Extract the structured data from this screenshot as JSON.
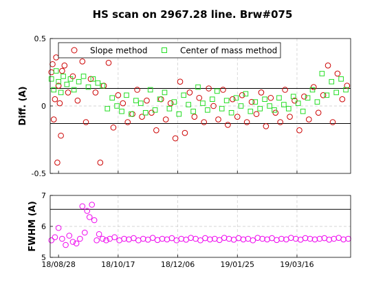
{
  "colors": {
    "slope": "#cc0000",
    "center": "#22dd22",
    "fwhm": "#ee00ee",
    "grid": "#c8c8c8"
  },
  "chart_data": [
    {
      "type": "scatter",
      "title": "HS scan on 2967.28 line. Brw#075",
      "ylabel": "Diff.  (A)",
      "xlabel": "",
      "xlim": [
        "2018-08-21",
        "2019-04-30"
      ],
      "ylim": [
        -0.5,
        0.5
      ],
      "yticks": [
        -0.5,
        0,
        0.5
      ],
      "xtick_labels": [
        "18/08/28",
        "18/10/17",
        "18/12/06",
        "19/01/25",
        "19/03/16"
      ],
      "xtick_dates": [
        "2018-08-28",
        "2018-10-17",
        "2018-12-06",
        "2019-01-25",
        "2019-03-16"
      ],
      "grid": true,
      "hlines": [
        0.13,
        -0.13
      ],
      "legend": {
        "placement": "top",
        "entries": [
          "Slope method",
          "Center of mass method"
        ]
      },
      "series": [
        {
          "name": "Slope method",
          "marker": "circle",
          "x": [
            "2018-08-22",
            "2018-08-23",
            "2018-08-24",
            "2018-08-25",
            "2018-08-26",
            "2018-08-27",
            "2018-08-28",
            "2018-08-29",
            "2018-08-30",
            "2018-08-31",
            "2018-09-02",
            "2018-09-05",
            "2018-09-09",
            "2018-09-13",
            "2018-09-17",
            "2018-09-20",
            "2018-09-24",
            "2018-09-28",
            "2018-10-02",
            "2018-10-05",
            "2018-10-09",
            "2018-10-13",
            "2018-10-17",
            "2018-10-21",
            "2018-10-25",
            "2018-10-29",
            "2018-11-02",
            "2018-11-06",
            "2018-11-10",
            "2018-11-14",
            "2018-11-18",
            "2018-11-22",
            "2018-11-26",
            "2018-11-30",
            "2018-12-04",
            "2018-12-08",
            "2018-12-12",
            "2018-12-16",
            "2018-12-20",
            "2018-12-24",
            "2018-12-28",
            "2019-01-01",
            "2019-01-05",
            "2019-01-09",
            "2019-01-13",
            "2019-01-17",
            "2019-01-21",
            "2019-01-25",
            "2019-01-29",
            "2019-02-02",
            "2019-02-06",
            "2019-02-10",
            "2019-02-14",
            "2019-02-18",
            "2019-02-22",
            "2019-02-26",
            "2019-03-02",
            "2019-03-06",
            "2019-03-10",
            "2019-03-14",
            "2019-03-18",
            "2019-03-22",
            "2019-03-26",
            "2019-03-30",
            "2019-04-03",
            "2019-04-07",
            "2019-04-11",
            "2019-04-15",
            "2019-04-19",
            "2019-04-23",
            "2019-04-27"
          ],
          "y": [
            0.25,
            0.31,
            -0.1,
            0.05,
            0.36,
            -0.42,
            0.15,
            0.02,
            -0.22,
            0.26,
            0.3,
            0.1,
            0.22,
            0.04,
            0.33,
            -0.12,
            0.2,
            0.1,
            -0.42,
            0.15,
            0.32,
            -0.16,
            0.08,
            0.02,
            -0.12,
            -0.06,
            0.12,
            -0.08,
            0.04,
            -0.05,
            -0.18,
            0.05,
            -0.1,
            0.02,
            -0.24,
            0.18,
            -0.2,
            0.1,
            -0.08,
            0.06,
            -0.12,
            0.13,
            0.0,
            -0.1,
            0.12,
            -0.14,
            0.05,
            -0.08,
            0.08,
            -0.12,
            0.03,
            -0.06,
            0.1,
            -0.15,
            0.06,
            -0.05,
            -0.12,
            0.12,
            -0.08,
            0.04,
            -0.18,
            0.07,
            -0.1,
            0.14,
            -0.05,
            0.08,
            0.3,
            -0.12,
            0.24,
            0.05,
            0.15
          ]
        },
        {
          "name": "Center of mass method",
          "marker": "square",
          "x": [
            "2018-08-22",
            "2018-08-24",
            "2018-08-26",
            "2018-08-28",
            "2018-08-30",
            "2018-09-01",
            "2018-09-04",
            "2018-09-07",
            "2018-09-10",
            "2018-09-14",
            "2018-09-18",
            "2018-09-22",
            "2018-09-26",
            "2018-09-30",
            "2018-10-04",
            "2018-10-08",
            "2018-10-12",
            "2018-10-16",
            "2018-10-20",
            "2018-10-24",
            "2018-10-28",
            "2018-11-01",
            "2018-11-05",
            "2018-11-09",
            "2018-11-13",
            "2018-11-17",
            "2018-11-21",
            "2018-11-25",
            "2018-11-29",
            "2018-12-03",
            "2018-12-07",
            "2018-12-11",
            "2018-12-15",
            "2018-12-19",
            "2018-12-23",
            "2018-12-27",
            "2018-12-31",
            "2019-01-04",
            "2019-01-08",
            "2019-01-12",
            "2019-01-16",
            "2019-01-20",
            "2019-01-24",
            "2019-01-28",
            "2019-02-01",
            "2019-02-05",
            "2019-02-09",
            "2019-02-13",
            "2019-02-17",
            "2019-02-21",
            "2019-02-25",
            "2019-03-01",
            "2019-03-05",
            "2019-03-09",
            "2019-03-13",
            "2019-03-17",
            "2019-03-21",
            "2019-03-25",
            "2019-03-29",
            "2019-04-02",
            "2019-04-06",
            "2019-04-10",
            "2019-04-14",
            "2019-04-18",
            "2019-04-22",
            "2019-04-26"
          ],
          "y": [
            0.2,
            0.12,
            0.26,
            0.18,
            0.1,
            0.22,
            0.16,
            0.2,
            0.12,
            0.18,
            0.22,
            0.14,
            0.2,
            0.17,
            0.15,
            -0.02,
            0.06,
            0.0,
            -0.04,
            0.08,
            -0.06,
            0.04,
            0.02,
            -0.05,
            0.12,
            -0.03,
            0.05,
            0.1,
            -0.02,
            0.03,
            -0.06,
            0.08,
            0.01,
            -0.04,
            0.14,
            0.02,
            -0.03,
            0.05,
            0.11,
            -0.02,
            0.04,
            -0.05,
            0.06,
            0.0,
            0.09,
            -0.04,
            0.03,
            -0.02,
            0.05,
            0.0,
            -0.03,
            0.06,
            0.01,
            -0.02,
            0.07,
            0.02,
            -0.04,
            0.06,
            0.12,
            0.03,
            0.24,
            0.08,
            0.18,
            0.1,
            0.2,
            0.12
          ]
        }
      ]
    },
    {
      "type": "scatter",
      "title": "",
      "ylabel": "FWHM (A)",
      "xlabel": "",
      "xlim": [
        "2018-08-21",
        "2019-04-30"
      ],
      "ylim": [
        5,
        7
      ],
      "yticks": [
        5,
        6,
        7
      ],
      "xtick_labels": [
        "18/08/28",
        "18/10/17",
        "18/12/06",
        "19/01/25",
        "19/03/16"
      ],
      "xtick_dates": [
        "2018-08-28",
        "2018-10-17",
        "2018-12-06",
        "2019-01-25",
        "2019-03-16"
      ],
      "grid": true,
      "hlines": [
        6.55
      ],
      "series": [
        {
          "name": "",
          "marker": "circle",
          "x": [
            "2018-08-22",
            "2018-08-25",
            "2018-08-28",
            "2018-08-31",
            "2018-09-03",
            "2018-09-06",
            "2018-09-09",
            "2018-09-12",
            "2018-09-15",
            "2018-09-17",
            "2018-09-19",
            "2018-09-21",
            "2018-09-23",
            "2018-09-25",
            "2018-09-27",
            "2018-09-29",
            "2018-10-01",
            "2018-10-04",
            "2018-10-07",
            "2018-10-10",
            "2018-10-14",
            "2018-10-18",
            "2018-10-22",
            "2018-10-26",
            "2018-10-30",
            "2018-11-03",
            "2018-11-07",
            "2018-11-11",
            "2018-11-15",
            "2018-11-19",
            "2018-11-23",
            "2018-11-27",
            "2018-12-01",
            "2018-12-05",
            "2018-12-09",
            "2018-12-13",
            "2018-12-17",
            "2018-12-21",
            "2018-12-25",
            "2018-12-29",
            "2019-01-02",
            "2019-01-06",
            "2019-01-10",
            "2019-01-14",
            "2019-01-18",
            "2019-01-22",
            "2019-01-26",
            "2019-01-30",
            "2019-02-03",
            "2019-02-07",
            "2019-02-11",
            "2019-02-15",
            "2019-02-19",
            "2019-02-23",
            "2019-02-27",
            "2019-03-03",
            "2019-03-07",
            "2019-03-11",
            "2019-03-15",
            "2019-03-19",
            "2019-03-23",
            "2019-03-27",
            "2019-03-31",
            "2019-04-04",
            "2019-04-08",
            "2019-04-12",
            "2019-04-16",
            "2019-04-20",
            "2019-04-24",
            "2019-04-28"
          ],
          "y": [
            5.55,
            5.65,
            5.95,
            5.6,
            5.4,
            5.7,
            5.5,
            5.45,
            5.6,
            6.65,
            5.8,
            6.5,
            6.3,
            6.7,
            6.2,
            5.55,
            5.75,
            5.6,
            5.55,
            5.6,
            5.65,
            5.55,
            5.6,
            5.58,
            5.62,
            5.55,
            5.6,
            5.57,
            5.63,
            5.56,
            5.6,
            5.58,
            5.62,
            5.55,
            5.6,
            5.57,
            5.63,
            5.6,
            5.55,
            5.62,
            5.58,
            5.6,
            5.56,
            5.63,
            5.6,
            5.57,
            5.62,
            5.58,
            5.6,
            5.55,
            5.63,
            5.6,
            5.58,
            5.62,
            5.56,
            5.6,
            5.58,
            5.63,
            5.6,
            5.57,
            5.62,
            5.6,
            5.58,
            5.6,
            5.62,
            5.57,
            5.6,
            5.63,
            5.58,
            5.6
          ]
        }
      ]
    }
  ]
}
